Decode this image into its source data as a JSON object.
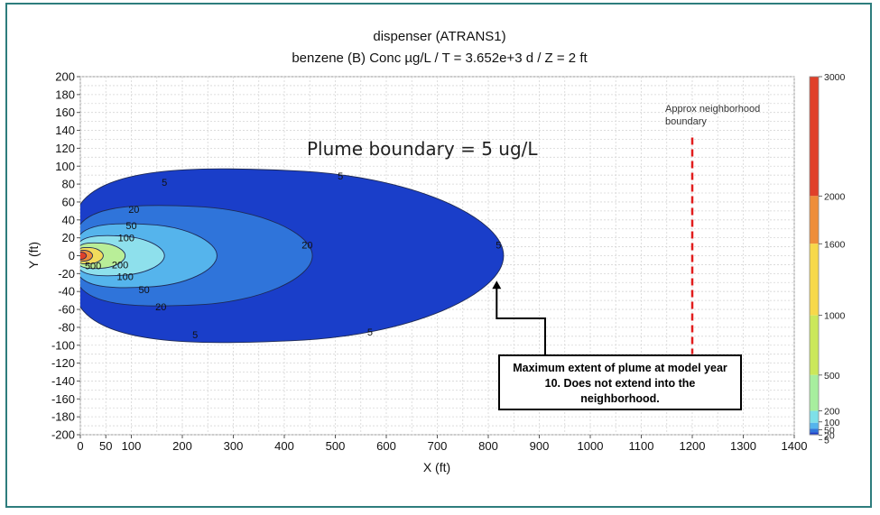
{
  "chart_data": {
    "type": "contour",
    "title_line1": "dispenser (ATRANS1)",
    "title_line2": "benzene (B) Conc µg/L  /  T = 3.652e+3 d  /  Z = 2 ft",
    "xlabel": "X (ft)",
    "ylabel": "Y (ft)",
    "xlim": [
      0,
      1400
    ],
    "ylim": [
      -200,
      200
    ],
    "x_ticks": [
      0,
      50,
      100,
      200,
      300,
      400,
      500,
      600,
      700,
      800,
      900,
      1000,
      1100,
      1200,
      1300,
      1400
    ],
    "y_ticks": [
      200,
      180,
      160,
      140,
      120,
      100,
      80,
      60,
      40,
      20,
      0,
      -20,
      -40,
      -60,
      -80,
      -100,
      -120,
      -140,
      -160,
      -180,
      -200
    ],
    "grid": true,
    "contours": [
      {
        "level": 5,
        "x_extent": [
          0,
          830
        ],
        "y_half_width": 95,
        "color": "#1a3ec9"
      },
      {
        "level": 20,
        "x_extent": [
          0,
          455
        ],
        "y_half_width": 55,
        "color": "#2f74da"
      },
      {
        "level": 50,
        "x_extent": [
          0,
          268
        ],
        "y_half_width": 35,
        "color": "#55b4ec"
      },
      {
        "level": 100,
        "x_extent": [
          0,
          165
        ],
        "y_half_width": 22,
        "color": "#8ee0ec"
      },
      {
        "level": 200,
        "x_extent": [
          0,
          88
        ],
        "y_half_width": 14,
        "color": "#b9ee98"
      },
      {
        "level": 500,
        "x_extent": [
          0,
          45
        ],
        "y_half_width": 9,
        "color": "#f2dc5c"
      },
      {
        "level": 1600,
        "x_extent": [
          0,
          24
        ],
        "y_half_width": 6,
        "color": "#ee8e3a"
      },
      {
        "level": 3000,
        "x_extent": [
          0,
          12
        ],
        "y_half_width": 4,
        "color": "#e0402a"
      }
    ],
    "contour_labels": [
      {
        "text": "5",
        "x": 165,
        "y": 82
      },
      {
        "text": "5",
        "x": 510,
        "y": 89
      },
      {
        "text": "5",
        "x": 225,
        "y": -88
      },
      {
        "text": "5",
        "x": 568,
        "y": -85
      },
      {
        "text": "5",
        "x": 820,
        "y": 12
      },
      {
        "text": "20",
        "x": 105,
        "y": 52
      },
      {
        "text": "20",
        "x": 158,
        "y": -57
      },
      {
        "text": "20",
        "x": 445,
        "y": 12
      },
      {
        "text": "50",
        "x": 100,
        "y": 34
      },
      {
        "text": "50",
        "x": 125,
        "y": -38
      },
      {
        "text": "100",
        "x": 90,
        "y": 20
      },
      {
        "text": "100",
        "x": 88,
        "y": -23
      },
      {
        "text": "200",
        "x": 78,
        "y": -10
      },
      {
        "text": "500",
        "x": 25,
        "y": -11
      }
    ],
    "colorbar": {
      "labels": [
        "3000",
        "2000",
        "1600",
        "1000",
        "500",
        "200",
        "100",
        "50",
        "20",
        "5"
      ],
      "stops": [
        {
          "from": 3000,
          "to": 2000,
          "color": "#e0402a"
        },
        {
          "from": 2000,
          "to": 1600,
          "color": "#ee8e3a"
        },
        {
          "from": 1600,
          "to": 1000,
          "color": "#f7d94a"
        },
        {
          "from": 1000,
          "to": 500,
          "color": "#cbe85a"
        },
        {
          "from": 500,
          "to": 200,
          "color": "#a7ee9e"
        },
        {
          "from": 200,
          "to": 100,
          "color": "#7ee0e8"
        },
        {
          "from": 100,
          "to": 50,
          "color": "#55b4ec"
        },
        {
          "from": 50,
          "to": 20,
          "color": "#2f74da"
        },
        {
          "from": 20,
          "to": 5,
          "color": "#1a3ec9"
        },
        {
          "from": 5,
          "to": 0,
          "color": "#1a2aa0"
        }
      ]
    },
    "annotations": {
      "plume_note": "Plume boundary = 5 ug/L",
      "neighborhood_label_line1": "Approx neighborhood",
      "neighborhood_label_line2": "boundary",
      "neighborhood_x": 1200,
      "neighborhood_y_range": [
        -110,
        132
      ],
      "neighborhood_color": "#e11d1d",
      "callout_text": "Maximum extent of plume at model year 10.  Does not extend into the neighborhood.",
      "arrow_tip": {
        "x": 820,
        "y": -28
      }
    }
  }
}
